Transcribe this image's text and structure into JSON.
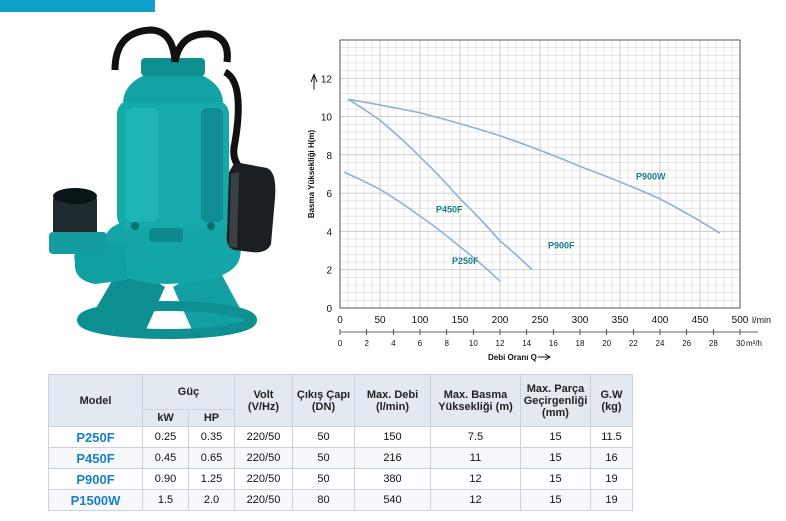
{
  "colors": {
    "brand_bar": "#0fa0c9",
    "pump_body": "#14a6a6",
    "pump_dark": "#0b6f72",
    "curve": "#8cb2dc",
    "curve_label": "#1a7f8a",
    "grid": "#c8c8c8",
    "header_bg": "#e3e9f1",
    "model_text": "#1a7fc4"
  },
  "chart_data": {
    "type": "line",
    "ylabel": "Basma Yüksekliği H(m)",
    "xlabel": "Debi Oranı Q",
    "x_unit_primary": "l/min",
    "x_unit_secondary": "m³/h",
    "xlim": [
      0,
      500
    ],
    "ylim": [
      0,
      14
    ],
    "y_ticks": [
      "0",
      "2",
      "4",
      "6",
      "8",
      "10",
      "12"
    ],
    "x_ticks": [
      "0",
      "50",
      "100",
      "150",
      "200",
      "250",
      "300",
      "350",
      "400",
      "450",
      "500"
    ],
    "x2_ticks": [
      "0",
      "2",
      "4",
      "6",
      "8",
      "10",
      "12",
      "14",
      "16",
      "18",
      "20",
      "22",
      "24",
      "26",
      "28",
      "30"
    ],
    "grid": true,
    "series": [
      {
        "name": "P900W",
        "x": [
          10,
          100,
          200,
          300,
          400,
          475
        ],
        "y": [
          10.9,
          10.2,
          9.0,
          7.4,
          5.7,
          3.9
        ]
      },
      {
        "name": "P450F",
        "x": [
          10,
          50,
          100,
          150,
          200,
          240
        ],
        "y": [
          10.9,
          9.8,
          7.9,
          5.7,
          3.5,
          2.0
        ]
      },
      {
        "name": "P250F",
        "x": [
          5,
          50,
          100,
          150,
          200
        ],
        "y": [
          7.1,
          6.2,
          4.8,
          3.2,
          1.4
        ]
      }
    ],
    "labels": [
      {
        "text": "P900W",
        "x": 370,
        "y": 6.7
      },
      {
        "text": "P450F",
        "x": 120,
        "y": 5.0
      },
      {
        "text": "P900F",
        "x": 260,
        "y": 3.1
      },
      {
        "text": "P250F",
        "x": 140,
        "y": 2.3
      }
    ]
  },
  "table": {
    "headers": {
      "model": "Model",
      "guc": "Güç",
      "kw": "kW",
      "hp": "HP",
      "volt_1": "Volt",
      "volt_2": "(V/Hz)",
      "cikis_1": "Çıkış Çapı",
      "cikis_2": "(DN)",
      "debi_1": "Max. Debi",
      "debi_2": "(l/min)",
      "basma_1": "Max. Basma",
      "basma_2": "Yüksekliği (m)",
      "parca_1": "Max. Parça",
      "parca_2": "Geçirgenliği",
      "parca_3": "(mm)",
      "gw_1": "G.W",
      "gw_2": "(kg)"
    },
    "rows": [
      {
        "model": "P250F",
        "kw": "0.25",
        "hp": "0.35",
        "volt": "220/50",
        "dn": "50",
        "debi": "150",
        "basma": "7.5",
        "parca": "15",
        "gw": "11.5"
      },
      {
        "model": "P450F",
        "kw": "0.45",
        "hp": "0.65",
        "volt": "220/50",
        "dn": "50",
        "debi": "216",
        "basma": "11",
        "parca": "15",
        "gw": "16"
      },
      {
        "model": "P900F",
        "kw": "0.90",
        "hp": "1.25",
        "volt": "220/50",
        "dn": "50",
        "debi": "380",
        "basma": "12",
        "parca": "15",
        "gw": "19"
      },
      {
        "model": "P1500W",
        "kw": "1.5",
        "hp": "2.0",
        "volt": "220/50",
        "dn": "80",
        "debi": "540",
        "basma": "12",
        "parca": "15",
        "gw": "19"
      }
    ]
  }
}
